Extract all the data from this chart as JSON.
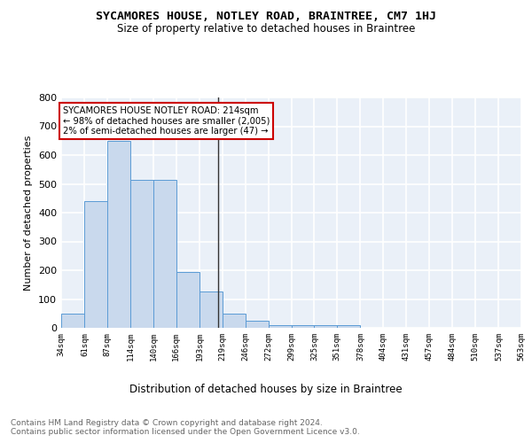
{
  "title": "SYCAMORES HOUSE, NOTLEY ROAD, BRAINTREE, CM7 1HJ",
  "subtitle": "Size of property relative to detached houses in Braintree",
  "xlabel": "Distribution of detached houses by size in Braintree",
  "ylabel": "Number of detached properties",
  "bar_color": "#c9d9ed",
  "bar_edge_color": "#5b9bd5",
  "bg_color": "#eaf0f8",
  "grid_color": "#ffffff",
  "annotation_line_color": "#333333",
  "annotation_box_edge": "#cc0000",
  "annotation_text": "SYCAMORES HOUSE NOTLEY ROAD: 214sqm\n← 98% of detached houses are smaller (2,005)\n2% of semi-detached houses are larger (47) →",
  "property_size": 214,
  "bin_edges": [
    34,
    61,
    87,
    114,
    140,
    166,
    193,
    219,
    246,
    272,
    299,
    325,
    351,
    378,
    404,
    431,
    457,
    484,
    510,
    537,
    563
  ],
  "bin_counts": [
    50,
    440,
    650,
    515,
    515,
    195,
    125,
    50,
    25,
    10,
    8,
    8,
    10,
    0,
    0,
    0,
    0,
    0,
    0,
    0
  ],
  "tick_labels": [
    "34sqm",
    "61sqm",
    "87sqm",
    "114sqm",
    "140sqm",
    "166sqm",
    "193sqm",
    "219sqm",
    "246sqm",
    "272sqm",
    "299sqm",
    "325sqm",
    "351sqm",
    "378sqm",
    "404sqm",
    "431sqm",
    "457sqm",
    "484sqm",
    "510sqm",
    "537sqm",
    "563sqm"
  ],
  "footer_text": "Contains HM Land Registry data © Crown copyright and database right 2024.\nContains public sector information licensed under the Open Government Licence v3.0.",
  "ylim": [
    0,
    800
  ],
  "yticks": [
    0,
    100,
    200,
    300,
    400,
    500,
    600,
    700,
    800
  ]
}
